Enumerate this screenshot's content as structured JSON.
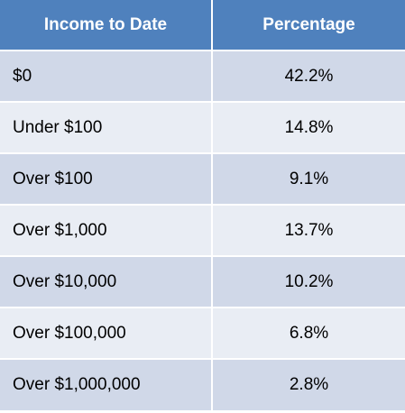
{
  "chart_data": {
    "type": "table",
    "columns": [
      "Income to Date",
      "Percentage"
    ],
    "rows": [
      {
        "label": "$0",
        "value": "42.2%"
      },
      {
        "label": "Under $100",
        "value": "14.8%"
      },
      {
        "label": "Over $100",
        "value": "9.1%"
      },
      {
        "label": "Over $1,000",
        "value": "13.7%"
      },
      {
        "label": "Over $10,000",
        "value": "10.2%"
      },
      {
        "label": "Over $100,000",
        "value": "6.8%"
      },
      {
        "label": "Over $1,000,000",
        "value": "2.8%"
      }
    ]
  },
  "colors": {
    "header_bg": "#4f81bd",
    "header_text": "#ffffff",
    "row_band_dark": "#d0d8e8",
    "row_band_light": "#e9edf4"
  }
}
